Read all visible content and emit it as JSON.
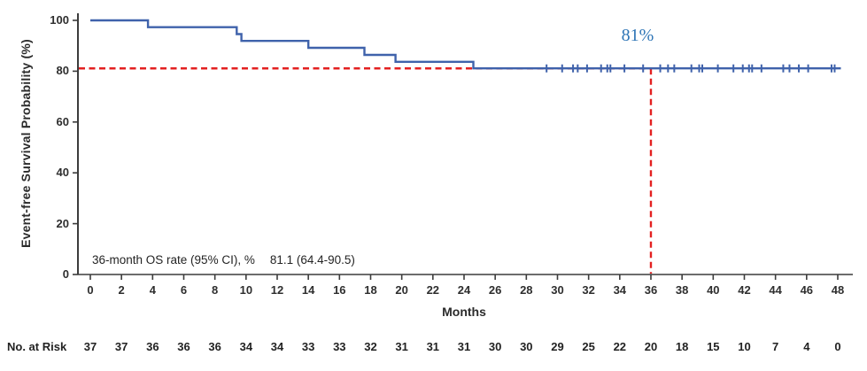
{
  "chart_data": {
    "type": "line",
    "subtype": "kaplan-meier-step-curve",
    "title": "",
    "xlabel": "Months",
    "ylabel": "Event-free Survival Probability (%)",
    "xlim": [
      0,
      48
    ],
    "ylim": [
      0,
      100
    ],
    "x_ticks": [
      0,
      2,
      4,
      6,
      8,
      10,
      12,
      14,
      16,
      18,
      20,
      22,
      24,
      26,
      28,
      30,
      32,
      34,
      36,
      38,
      40,
      42,
      44,
      46,
      48
    ],
    "y_ticks": [
      0,
      20,
      40,
      60,
      80,
      100
    ],
    "grid": false,
    "legend": "none",
    "series": [
      {
        "name": "Event-free survival",
        "color": "#3f62ab",
        "step_points_month_pct": [
          [
            0,
            100
          ],
          [
            3.7,
            97.3
          ],
          [
            9.4,
            94.6
          ],
          [
            9.7,
            91.9
          ],
          [
            14.0,
            89.2
          ],
          [
            17.6,
            86.4
          ],
          [
            19.6,
            83.7
          ],
          [
            24.6,
            81.1
          ],
          [
            48.2,
            81.1
          ]
        ],
        "censor_marks_months": [
          29.3,
          30.3,
          31.0,
          31.3,
          31.9,
          32.8,
          33.2,
          33.4,
          34.3,
          35.5,
          36.6,
          37.1,
          37.5,
          38.6,
          39.1,
          39.3,
          40.3,
          41.3,
          41.9,
          42.3,
          42.5,
          43.1,
          44.5,
          44.9,
          45.5,
          46.1,
          47.6,
          47.8
        ],
        "censor_level_pct": 81.1
      }
    ],
    "reference_lines": {
      "horizontal_value_pct": 81.1,
      "vertical_value_month": 36,
      "color": "#e32020",
      "style": "dashed"
    },
    "percent_annotation": {
      "text": "81%",
      "color": "#2e75b6",
      "near_month": 35,
      "near_pct": 88
    },
    "stat_annotation": {
      "label": "36-month OS rate (95% CI), %",
      "value": "81.1 (64.4-90.5)"
    },
    "risk_table": {
      "label": "No. at Risk",
      "months": [
        0,
        2,
        4,
        6,
        8,
        10,
        12,
        14,
        16,
        18,
        20,
        22,
        24,
        26,
        28,
        30,
        32,
        34,
        36,
        38,
        40,
        42,
        44,
        46,
        48
      ],
      "values": [
        37,
        37,
        36,
        36,
        36,
        34,
        34,
        33,
        33,
        32,
        31,
        31,
        31,
        30,
        30,
        29,
        25,
        22,
        20,
        18,
        15,
        10,
        7,
        4,
        0
      ]
    },
    "colors": {
      "curve_blue": "#3f62ab",
      "reference_red": "#e32020",
      "annotation_blue": "#2e75b6",
      "axis": "#3c3c3c",
      "text": "#2b2b2b",
      "background": "#ffffff"
    }
  }
}
